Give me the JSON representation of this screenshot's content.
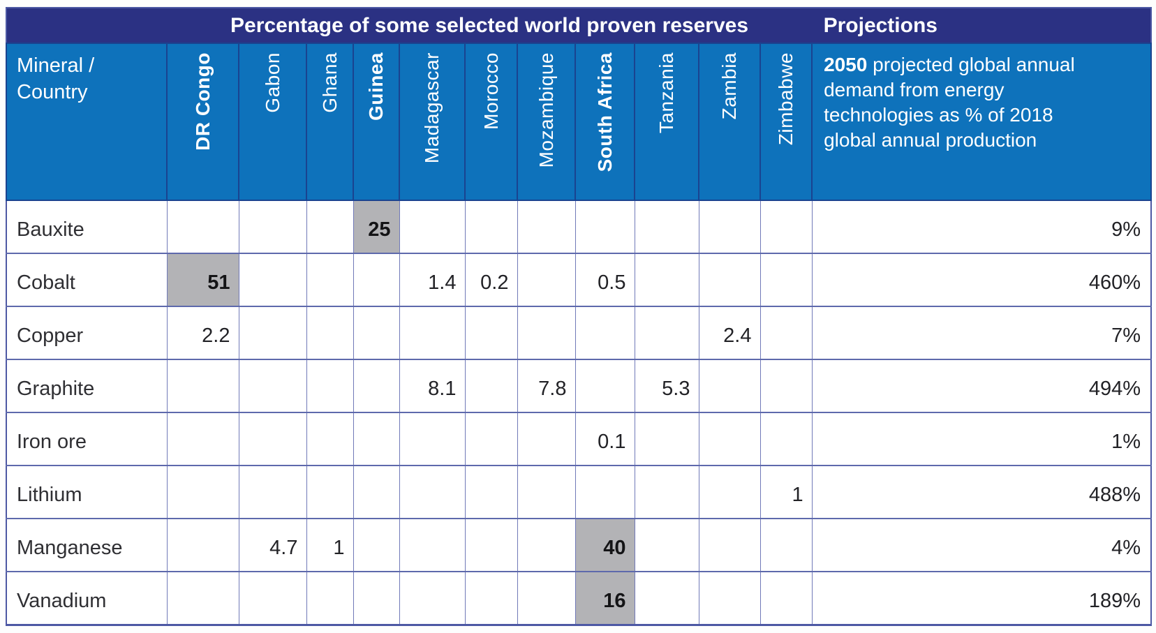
{
  "header": {
    "title": "Percentage of some selected world proven reserves",
    "projections_label": "Projections",
    "row_header_line1": "Mineral /",
    "row_header_line2": "Country",
    "projection_desc_bold": "2050",
    "projection_desc_rest": " projected global annual demand from energy technologies as % of 2018 global annual production"
  },
  "colors": {
    "band_navy": "#2b3183",
    "header_blue": "#0e72bb",
    "highlight_gray": "#b3b3b6",
    "grid_line": "#5e69ac",
    "text_dark": "#2f2f33",
    "text_white": "#ffffff"
  },
  "table": {
    "columns": [
      {
        "key": "dr_congo",
        "label": "DR Congo",
        "bold": true
      },
      {
        "key": "gabon",
        "label": "Gabon",
        "bold": false
      },
      {
        "key": "ghana",
        "label": "Ghana",
        "bold": false
      },
      {
        "key": "guinea",
        "label": "Guinea",
        "bold": true
      },
      {
        "key": "madagascar",
        "label": "Madagascar",
        "bold": false
      },
      {
        "key": "morocco",
        "label": "Morocco",
        "bold": false
      },
      {
        "key": "mozambique",
        "label": "Mozambique",
        "bold": false
      },
      {
        "key": "south_africa",
        "label": "South Africa",
        "bold": true
      },
      {
        "key": "tanzania",
        "label": "Tanzania",
        "bold": false
      },
      {
        "key": "zambia",
        "label": "Zambia",
        "bold": false
      },
      {
        "key": "zimbabwe",
        "label": "Zimbabwe",
        "bold": false
      }
    ],
    "rows": [
      {
        "key": "bauxite",
        "mineral": "Bauxite",
        "projection": "9%",
        "cells": [
          {
            "value": ""
          },
          {
            "value": ""
          },
          {
            "value": ""
          },
          {
            "value": "25",
            "highlight": true
          },
          {
            "value": ""
          },
          {
            "value": ""
          },
          {
            "value": ""
          },
          {
            "value": ""
          },
          {
            "value": ""
          },
          {
            "value": ""
          },
          {
            "value": ""
          }
        ]
      },
      {
        "key": "cobalt",
        "mineral": "Cobalt",
        "projection": "460%",
        "cells": [
          {
            "value": "51",
            "highlight": true
          },
          {
            "value": ""
          },
          {
            "value": ""
          },
          {
            "value": ""
          },
          {
            "value": "1.4"
          },
          {
            "value": "0.2"
          },
          {
            "value": ""
          },
          {
            "value": "0.5"
          },
          {
            "value": ""
          },
          {
            "value": ""
          },
          {
            "value": ""
          }
        ]
      },
      {
        "key": "copper",
        "mineral": "Copper",
        "projection": "7%",
        "cells": [
          {
            "value": "2.2"
          },
          {
            "value": ""
          },
          {
            "value": ""
          },
          {
            "value": ""
          },
          {
            "value": ""
          },
          {
            "value": ""
          },
          {
            "value": ""
          },
          {
            "value": ""
          },
          {
            "value": ""
          },
          {
            "value": "2.4"
          },
          {
            "value": ""
          }
        ]
      },
      {
        "key": "graphite",
        "mineral": "Graphite",
        "projection": "494%",
        "cells": [
          {
            "value": ""
          },
          {
            "value": ""
          },
          {
            "value": ""
          },
          {
            "value": ""
          },
          {
            "value": "8.1"
          },
          {
            "value": ""
          },
          {
            "value": "7.8"
          },
          {
            "value": ""
          },
          {
            "value": "5.3"
          },
          {
            "value": ""
          },
          {
            "value": ""
          }
        ]
      },
      {
        "key": "iron_ore",
        "mineral": "Iron ore",
        "projection": "1%",
        "cells": [
          {
            "value": ""
          },
          {
            "value": ""
          },
          {
            "value": ""
          },
          {
            "value": ""
          },
          {
            "value": ""
          },
          {
            "value": ""
          },
          {
            "value": ""
          },
          {
            "value": "0.1"
          },
          {
            "value": ""
          },
          {
            "value": ""
          },
          {
            "value": ""
          }
        ]
      },
      {
        "key": "lithium",
        "mineral": "Lithium",
        "projection": "488%",
        "cells": [
          {
            "value": ""
          },
          {
            "value": ""
          },
          {
            "value": ""
          },
          {
            "value": ""
          },
          {
            "value": ""
          },
          {
            "value": ""
          },
          {
            "value": ""
          },
          {
            "value": ""
          },
          {
            "value": ""
          },
          {
            "value": ""
          },
          {
            "value": "1"
          }
        ]
      },
      {
        "key": "manganese",
        "mineral": "Manganese",
        "projection": "4%",
        "cells": [
          {
            "value": ""
          },
          {
            "value": "4.7"
          },
          {
            "value": "1"
          },
          {
            "value": ""
          },
          {
            "value": ""
          },
          {
            "value": ""
          },
          {
            "value": ""
          },
          {
            "value": "40",
            "highlight": true
          },
          {
            "value": ""
          },
          {
            "value": ""
          },
          {
            "value": ""
          }
        ]
      },
      {
        "key": "vanadium",
        "mineral": "Vanadium",
        "projection": "189%",
        "cells": [
          {
            "value": ""
          },
          {
            "value": ""
          },
          {
            "value": ""
          },
          {
            "value": ""
          },
          {
            "value": ""
          },
          {
            "value": ""
          },
          {
            "value": ""
          },
          {
            "value": "16",
            "highlight": true
          },
          {
            "value": ""
          },
          {
            "value": ""
          },
          {
            "value": ""
          }
        ]
      }
    ]
  }
}
